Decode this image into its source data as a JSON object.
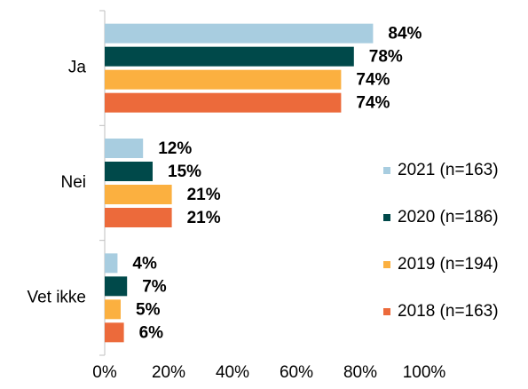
{
  "chart_data": {
    "type": "hbar",
    "categories": [
      "Ja",
      "Nei",
      "Vet ikke"
    ],
    "series": [
      {
        "name": "2021 (n=163)",
        "color": "#a8cde0",
        "values": [
          84,
          12,
          4
        ],
        "value_labels": [
          "84%",
          "12%",
          "4%"
        ]
      },
      {
        "name": "2020 (n=186)",
        "color": "#00494a",
        "values": [
          78,
          15,
          7
        ],
        "value_labels": [
          "78%",
          "15%",
          "7%"
        ]
      },
      {
        "name": "2019 (n=194)",
        "color": "#fbb040",
        "values": [
          74,
          21,
          5
        ],
        "value_labels": [
          "74%",
          "21%",
          "5%"
        ]
      },
      {
        "name": "2018 (n=163)",
        "color": "#ec6a3b",
        "values": [
          74,
          21,
          6
        ],
        "value_labels": [
          "74%",
          "21%",
          "6%"
        ]
      }
    ],
    "xlim": [
      0,
      100
    ],
    "xticks": [
      {
        "value": 0,
        "label": "0%"
      },
      {
        "value": 20,
        "label": "20%"
      },
      {
        "value": 40,
        "label": "40%"
      },
      {
        "value": 60,
        "label": "60%"
      },
      {
        "value": 80,
        "label": "80%"
      },
      {
        "value": 100,
        "label": "100%"
      }
    ],
    "legend": "right"
  }
}
